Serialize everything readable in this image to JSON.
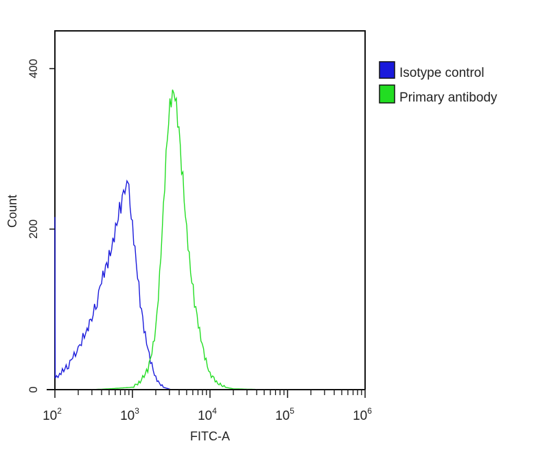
{
  "chart_data": {
    "type": "line",
    "title": "",
    "xlabel": "FITC-A",
    "ylabel": "Count",
    "xscale": "log",
    "xlim": [
      100,
      1000000
    ],
    "ylim": [
      0,
      447
    ],
    "x_ticks": [
      {
        "value": 100,
        "base": "10",
        "exp": "2"
      },
      {
        "value": 1000,
        "base": "10",
        "exp": "3"
      },
      {
        "value": 10000,
        "base": "10",
        "exp": "4"
      },
      {
        "value": 100000,
        "base": "10",
        "exp": "5"
      },
      {
        "value": 1000000,
        "base": "10",
        "exp": "6"
      }
    ],
    "y_ticks": [
      {
        "value": 0,
        "label": "0"
      },
      {
        "value": 200,
        "label": "200"
      },
      {
        "value": 400,
        "label": "400"
      }
    ],
    "grid": false,
    "legend_position": "right",
    "series": [
      {
        "name": "Isotype control",
        "color": "#1a1adb",
        "points": [
          [
            100,
            215
          ],
          [
            101,
            12
          ],
          [
            105,
            15
          ],
          [
            115,
            20
          ],
          [
            130,
            25
          ],
          [
            150,
            30
          ],
          [
            170,
            40
          ],
          [
            200,
            50
          ],
          [
            230,
            65
          ],
          [
            260,
            75
          ],
          [
            300,
            90
          ],
          [
            350,
            110
          ],
          [
            400,
            135
          ],
          [
            450,
            150
          ],
          [
            500,
            165
          ],
          [
            560,
            185
          ],
          [
            630,
            210
          ],
          [
            710,
            230
          ],
          [
            800,
            250
          ],
          [
            850,
            255
          ],
          [
            900,
            245
          ],
          [
            1000,
            205
          ],
          [
            1120,
            160
          ],
          [
            1260,
            110
          ],
          [
            1410,
            75
          ],
          [
            1580,
            50
          ],
          [
            1780,
            30
          ],
          [
            2000,
            15
          ],
          [
            2240,
            8
          ],
          [
            2500,
            3
          ],
          [
            3160,
            0
          ]
        ]
      },
      {
        "name": "Primary antibody",
        "color": "#22dd22",
        "points": [
          [
            300,
            0
          ],
          [
            500,
            1
          ],
          [
            1000,
            3
          ],
          [
            1260,
            10
          ],
          [
            1580,
            25
          ],
          [
            1780,
            45
          ],
          [
            2000,
            75
          ],
          [
            2240,
            140
          ],
          [
            2510,
            230
          ],
          [
            2820,
            320
          ],
          [
            3160,
            365
          ],
          [
            3550,
            365
          ],
          [
            3980,
            320
          ],
          [
            4470,
            260
          ],
          [
            5010,
            200
          ],
          [
            5620,
            150
          ],
          [
            6310,
            110
          ],
          [
            7080,
            80
          ],
          [
            7940,
            55
          ],
          [
            8910,
            35
          ],
          [
            10000,
            20
          ],
          [
            12600,
            8
          ],
          [
            15800,
            3
          ],
          [
            20000,
            1
          ],
          [
            50000,
            0
          ]
        ]
      }
    ]
  }
}
